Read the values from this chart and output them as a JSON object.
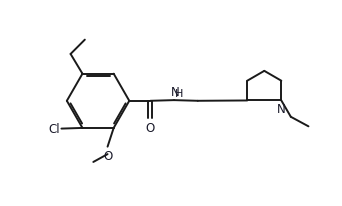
{
  "background_color": "#ffffff",
  "line_color": "#1a1a1a",
  "text_color": "#1a1a2a",
  "line_width": 1.4,
  "font_size": 8.5,
  "figsize": [
    3.42,
    2.07
  ],
  "dpi": 100,
  "xlim": [
    0,
    10
  ],
  "ylim": [
    0,
    6
  ]
}
